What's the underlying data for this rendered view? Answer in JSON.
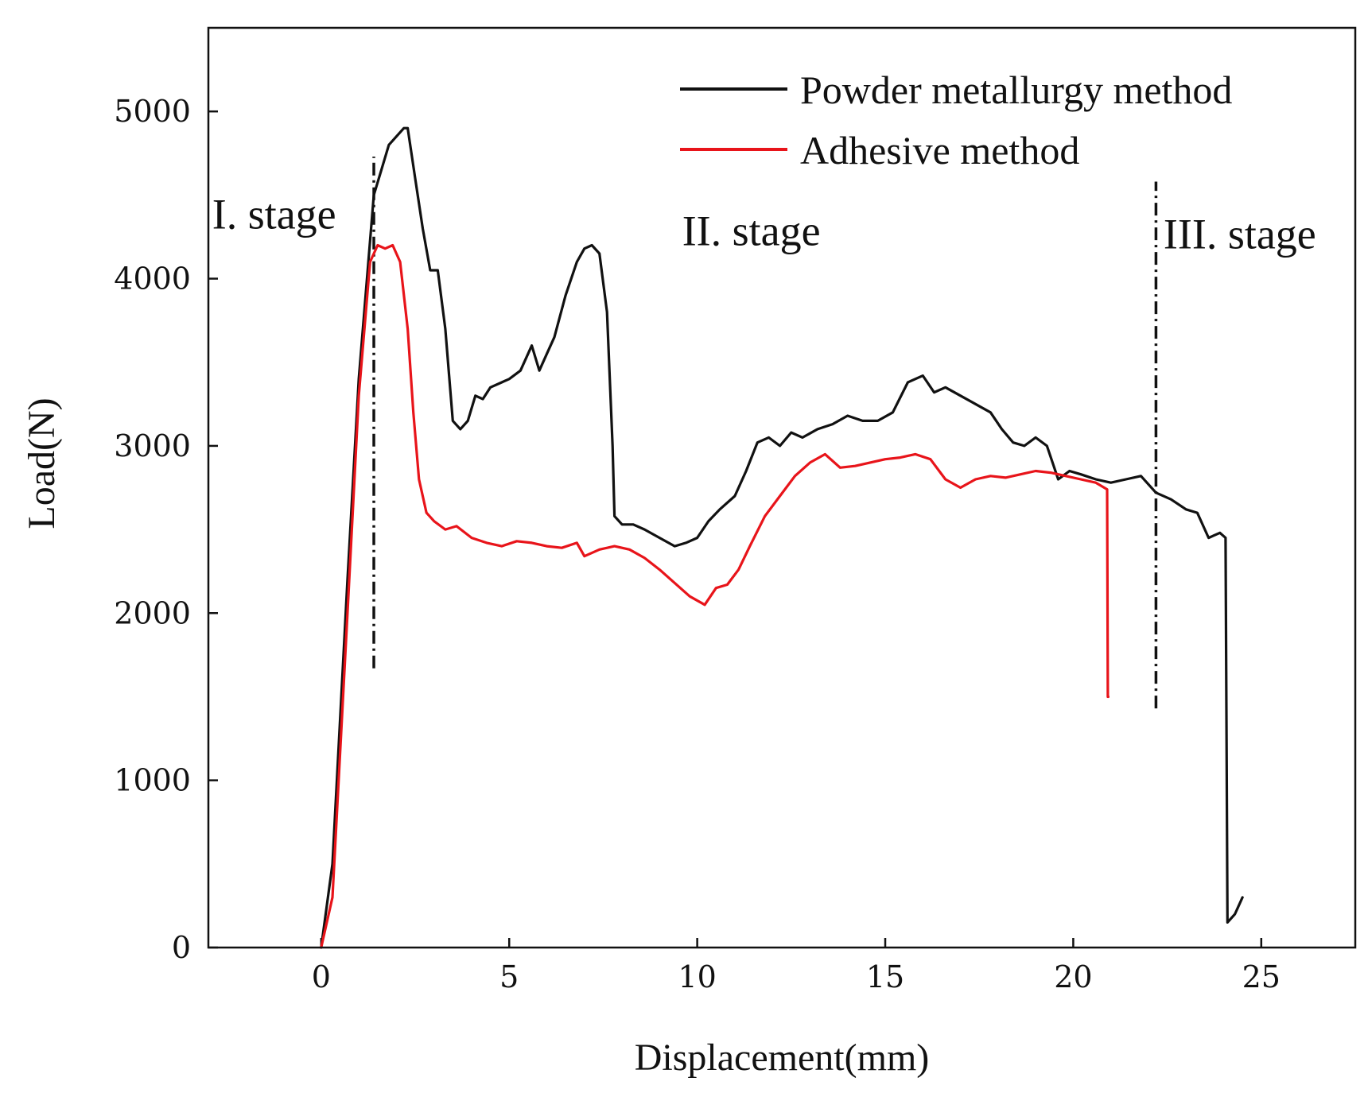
{
  "chart_data": {
    "type": "line",
    "title": "",
    "xlabel": "Displacement(mm)",
    "ylabel": "Load(N)",
    "xlim": [
      -3,
      27.5
    ],
    "ylim": [
      0,
      5500
    ],
    "x_ticks": [
      0,
      5,
      10,
      15,
      20,
      25
    ],
    "y_ticks": [
      0,
      1000,
      2000,
      3000,
      4000,
      5000
    ],
    "x_tick_labels": [
      "0",
      "5",
      "10",
      "15",
      "20",
      "25"
    ],
    "y_tick_labels": [
      "0",
      "1000",
      "2000",
      "3000",
      "4000",
      "5000"
    ],
    "grid": false,
    "legend_position": "top-right",
    "series": [
      {
        "name": "Powder metallurgy method",
        "color": "#111111",
        "x": [
          0,
          0.3,
          0.7,
          1.0,
          1.4,
          1.6,
          1.8,
          2.0,
          2.2,
          2.3,
          2.5,
          2.7,
          2.9,
          3.1,
          3.3,
          3.5,
          3.7,
          3.9,
          4.1,
          4.3,
          4.5,
          4.8,
          5.0,
          5.3,
          5.6,
          5.8,
          6.0,
          6.2,
          6.5,
          6.8,
          7.0,
          7.2,
          7.4,
          7.6,
          7.75,
          7.8,
          8.0,
          8.3,
          8.6,
          9.0,
          9.4,
          9.7,
          10.0,
          10.3,
          10.6,
          11.0,
          11.3,
          11.6,
          11.9,
          12.2,
          12.5,
          12.8,
          13.2,
          13.6,
          14.0,
          14.4,
          14.8,
          15.2,
          15.6,
          16.0,
          16.3,
          16.6,
          17.0,
          17.4,
          17.8,
          18.1,
          18.4,
          18.7,
          19.0,
          19.3,
          19.6,
          19.9,
          20.2,
          20.6,
          21.0,
          21.4,
          21.8,
          22.2,
          22.6,
          23.0,
          23.3,
          23.6,
          23.9,
          24.05,
          24.1,
          24.3,
          24.5
        ],
        "y": [
          0,
          500,
          2200,
          3400,
          4500,
          4650,
          4800,
          4850,
          4900,
          4900,
          4600,
          4300,
          4050,
          4050,
          3700,
          3150,
          3100,
          3150,
          3300,
          3280,
          3350,
          3380,
          3400,
          3450,
          3600,
          3450,
          3550,
          3650,
          3900,
          4100,
          4180,
          4200,
          4150,
          3800,
          3000,
          2580,
          2530,
          2530,
          2500,
          2450,
          2400,
          2420,
          2450,
          2550,
          2620,
          2700,
          2850,
          3020,
          3050,
          3000,
          3080,
          3050,
          3100,
          3130,
          3180,
          3150,
          3150,
          3200,
          3380,
          3420,
          3320,
          3350,
          3300,
          3250,
          3200,
          3100,
          3020,
          3000,
          3050,
          3000,
          2800,
          2850,
          2830,
          2800,
          2780,
          2800,
          2820,
          2720,
          2680,
          2620,
          2600,
          2450,
          2480,
          2450,
          150,
          200,
          300
        ]
      },
      {
        "name": "Adhesive method",
        "color": "#e8141a",
        "x": [
          0,
          0.3,
          0.7,
          1.0,
          1.3,
          1.5,
          1.7,
          1.9,
          2.1,
          2.3,
          2.45,
          2.6,
          2.8,
          3.0,
          3.3,
          3.6,
          4.0,
          4.4,
          4.8,
          5.2,
          5.6,
          6.0,
          6.4,
          6.8,
          7.0,
          7.4,
          7.8,
          8.2,
          8.6,
          9.0,
          9.4,
          9.8,
          10.2,
          10.5,
          10.8,
          11.1,
          11.4,
          11.8,
          12.2,
          12.6,
          13.0,
          13.4,
          13.8,
          14.2,
          14.6,
          15.0,
          15.4,
          15.8,
          16.2,
          16.6,
          17.0,
          17.4,
          17.8,
          18.2,
          18.6,
          19.0,
          19.4,
          19.8,
          20.2,
          20.6,
          20.9,
          20.92,
          20.93
        ],
        "y": [
          0,
          300,
          2000,
          3300,
          4100,
          4200,
          4180,
          4200,
          4100,
          3700,
          3200,
          2800,
          2600,
          2550,
          2500,
          2520,
          2450,
          2420,
          2400,
          2430,
          2420,
          2400,
          2390,
          2420,
          2340,
          2380,
          2400,
          2380,
          2330,
          2260,
          2180,
          2100,
          2050,
          2150,
          2170,
          2260,
          2400,
          2580,
          2700,
          2820,
          2900,
          2950,
          2870,
          2880,
          2900,
          2920,
          2930,
          2950,
          2920,
          2800,
          2750,
          2800,
          2820,
          2810,
          2830,
          2850,
          2840,
          2820,
          2800,
          2780,
          2740,
          1500,
          1500
        ]
      }
    ],
    "reference_lines": [
      {
        "name": "stage-1-boundary",
        "x": 1.4,
        "y_range": [
          1670,
          4730
        ]
      },
      {
        "name": "stage-3-boundary",
        "x": 22.2,
        "y_range": [
          1430,
          4580
        ]
      }
    ],
    "annotations": [
      {
        "text": "I. stage",
        "x": -2.9,
        "y": 4300
      },
      {
        "text": "II. stage",
        "x": 9.6,
        "y": 4200
      },
      {
        "text": "III. stage",
        "x": 22.4,
        "y": 4180
      }
    ]
  }
}
